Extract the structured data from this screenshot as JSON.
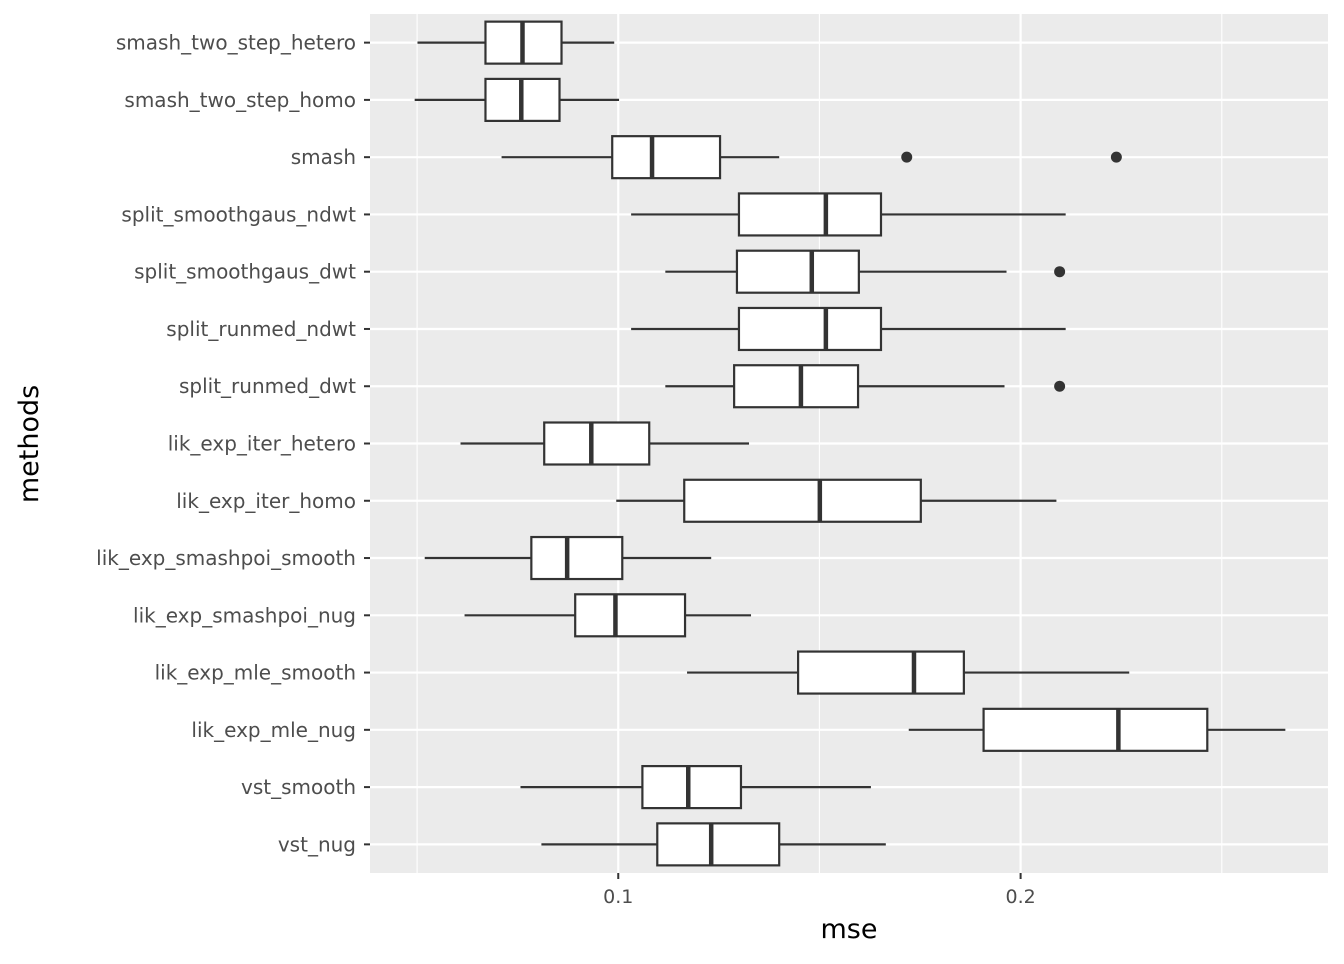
{
  "chart_data": {
    "type": "boxplot",
    "orientation": "horizontal",
    "xlabel": "mse",
    "ylabel": "methods",
    "xlim": [
      0.0383,
      0.2764
    ],
    "x_ticks": [
      0.1,
      0.2
    ],
    "x_tick_labels": [
      "0.1",
      "0.2"
    ],
    "grid": true,
    "colors": {
      "panel": "#ebebeb",
      "grid": "#ffffff",
      "box_fill": "#ffffff",
      "box_stroke": "#333333",
      "text": "#4d4d4d"
    },
    "categories": [
      "smash_two_step_hetero",
      "smash_two_step_homo",
      "smash",
      "split_smoothgaus_ndwt",
      "split_smoothgaus_dwt",
      "split_runmed_ndwt",
      "split_runmed_dwt",
      "lik_exp_iter_hetero",
      "lik_exp_iter_homo",
      "lik_exp_smashpoi_smooth",
      "lik_exp_smashpoi_nug",
      "lik_exp_mle_smooth",
      "lik_exp_mle_nug",
      "vst_smooth",
      "vst_nug"
    ],
    "boxes": [
      {
        "min": 0.0501,
        "q1": 0.067,
        "median": 0.0762,
        "q3": 0.0859,
        "max": 0.099,
        "outliers": []
      },
      {
        "min": 0.0494,
        "q1": 0.067,
        "median": 0.0759,
        "q3": 0.0854,
        "max": 0.1002,
        "outliers": []
      },
      {
        "min": 0.071,
        "q1": 0.0985,
        "median": 0.1084,
        "q3": 0.1253,
        "max": 0.14,
        "outliers": [
          0.1717,
          0.2238
        ]
      },
      {
        "min": 0.1032,
        "q1": 0.13,
        "median": 0.1516,
        "q3": 0.1653,
        "max": 0.2112,
        "outliers": []
      },
      {
        "min": 0.1117,
        "q1": 0.1295,
        "median": 0.1481,
        "q3": 0.1598,
        "max": 0.1965,
        "outliers": [
          0.2097
        ]
      },
      {
        "min": 0.1032,
        "q1": 0.13,
        "median": 0.1516,
        "q3": 0.1653,
        "max": 0.2112,
        "outliers": []
      },
      {
        "min": 0.1117,
        "q1": 0.1288,
        "median": 0.1454,
        "q3": 0.1596,
        "max": 0.196,
        "outliers": [
          0.2097
        ]
      },
      {
        "min": 0.0608,
        "q1": 0.0816,
        "median": 0.0933,
        "q3": 0.1077,
        "max": 0.1325,
        "outliers": []
      },
      {
        "min": 0.0995,
        "q1": 0.1164,
        "median": 0.1501,
        "q3": 0.1752,
        "max": 0.2089,
        "outliers": []
      },
      {
        "min": 0.0519,
        "q1": 0.0784,
        "median": 0.0873,
        "q3": 0.101,
        "max": 0.1231,
        "outliers": []
      },
      {
        "min": 0.0618,
        "q1": 0.0893,
        "median": 0.0993,
        "q3": 0.1166,
        "max": 0.133,
        "outliers": []
      },
      {
        "min": 0.1171,
        "q1": 0.1447,
        "median": 0.1735,
        "q3": 0.1859,
        "max": 0.227,
        "outliers": []
      },
      {
        "min": 0.1722,
        "q1": 0.1908,
        "median": 0.2243,
        "q3": 0.2464,
        "max": 0.2658,
        "outliers": []
      },
      {
        "min": 0.0757,
        "q1": 0.106,
        "median": 0.1174,
        "q3": 0.1305,
        "max": 0.1628,
        "outliers": []
      },
      {
        "min": 0.0809,
        "q1": 0.1097,
        "median": 0.1231,
        "q3": 0.14,
        "max": 0.1665,
        "outliers": []
      }
    ]
  }
}
